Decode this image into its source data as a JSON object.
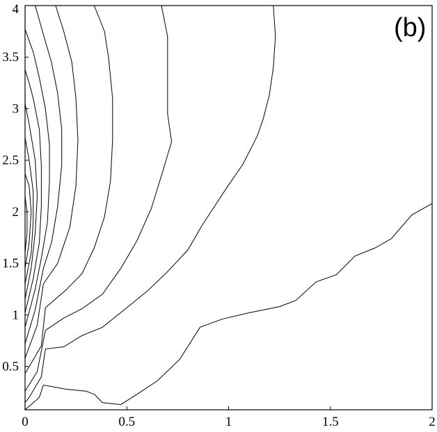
{
  "chart_data": {
    "type": "contour",
    "panel_label": "(b)",
    "xlim": [
      0,
      2
    ],
    "ylim": [
      0.08,
      4
    ],
    "x_ticks": [
      {
        "value": 0,
        "label": "0"
      },
      {
        "value": 0.5,
        "label": "0.5"
      },
      {
        "value": 1,
        "label": "1"
      },
      {
        "value": 1.5,
        "label": "1.5"
      },
      {
        "value": 2,
        "label": "2"
      }
    ],
    "y_ticks": [
      {
        "value": 0.5,
        "label": "0.5"
      },
      {
        "value": 1,
        "label": "1"
      },
      {
        "value": 1.5,
        "label": "1.5"
      },
      {
        "value": 2,
        "label": "2"
      },
      {
        "value": 2.5,
        "label": "2.5"
      },
      {
        "value": 3,
        "label": "3"
      },
      {
        "value": 3.5,
        "label": "3.5"
      },
      {
        "value": 4,
        "label": "4"
      }
    ],
    "contours": [
      {
        "points": [
          [
            0,
            0.08
          ],
          [
            0.07,
            0.2
          ],
          [
            0.09,
            0.32
          ],
          [
            0.2,
            0.28
          ],
          [
            0.3,
            0.26
          ],
          [
            0.34,
            0.23
          ],
          [
            0.38,
            0.15
          ],
          [
            0.47,
            0.13
          ],
          [
            0.55,
            0.23
          ],
          [
            0.65,
            0.36
          ],
          [
            0.76,
            0.57
          ],
          [
            0.86,
            0.88
          ],
          [
            0.97,
            0.96
          ],
          [
            1.1,
            1.02
          ],
          [
            1.25,
            1.08
          ],
          [
            1.33,
            1.14
          ],
          [
            1.43,
            1.32
          ],
          [
            1.53,
            1.39
          ],
          [
            1.62,
            1.57
          ],
          [
            1.72,
            1.65
          ],
          [
            1.8,
            1.74
          ],
          [
            1.9,
            1.97
          ],
          [
            2,
            2.08
          ]
        ]
      },
      {
        "points": [
          [
            0,
            0.15
          ],
          [
            0.02,
            0.2
          ],
          [
            0.08,
            0.4
          ],
          [
            0.1,
            0.67
          ],
          [
            0.19,
            0.69
          ],
          [
            0.28,
            0.8
          ],
          [
            0.38,
            0.88
          ],
          [
            0.5,
            1.07
          ],
          [
            0.6,
            1.23
          ],
          [
            0.7,
            1.42
          ],
          [
            0.8,
            1.63
          ],
          [
            0.87,
            1.87
          ],
          [
            0.93,
            2.05
          ],
          [
            1,
            2.26
          ],
          [
            1.07,
            2.46
          ],
          [
            1.14,
            2.73
          ],
          [
            1.17,
            2.9
          ],
          [
            1.2,
            3.13
          ],
          [
            1.22,
            3.4
          ],
          [
            1.23,
            3.7
          ],
          [
            1.22,
            4
          ]
        ]
      },
      {
        "points": [
          [
            0,
            0.26
          ],
          [
            0.06,
            0.45
          ],
          [
            0.1,
            0.85
          ],
          [
            0.19,
            0.97
          ],
          [
            0.28,
            1.06
          ],
          [
            0.38,
            1.2
          ],
          [
            0.47,
            1.45
          ],
          [
            0.55,
            1.72
          ],
          [
            0.62,
            2.03
          ],
          [
            0.67,
            2.35
          ],
          [
            0.72,
            2.68
          ],
          [
            0.7,
            2.95
          ],
          [
            0.7,
            3.35
          ],
          [
            0.7,
            3.7
          ],
          [
            0.67,
            4
          ]
        ]
      },
      {
        "points": [
          [
            0,
            0.43
          ],
          [
            0.08,
            0.7
          ],
          [
            0.1,
            1.07
          ],
          [
            0.2,
            1.24
          ],
          [
            0.28,
            1.4
          ],
          [
            0.34,
            1.65
          ],
          [
            0.39,
            1.95
          ],
          [
            0.42,
            2.3
          ],
          [
            0.43,
            2.7
          ],
          [
            0.43,
            3.1
          ],
          [
            0.41,
            3.5
          ],
          [
            0.39,
            3.75
          ],
          [
            0.34,
            4
          ]
        ]
      },
      {
        "points": [
          [
            0,
            0.58
          ],
          [
            0.06,
            0.9
          ],
          [
            0.09,
            1.3
          ],
          [
            0.16,
            1.5
          ],
          [
            0.22,
            1.85
          ],
          [
            0.25,
            2.25
          ],
          [
            0.26,
            2.7
          ],
          [
            0.25,
            3.1
          ],
          [
            0.23,
            3.45
          ],
          [
            0.19,
            3.75
          ],
          [
            0.15,
            4
          ]
        ]
      },
      {
        "points": [
          [
            0,
            0.72
          ],
          [
            0.05,
            1.05
          ],
          [
            0.09,
            1.45
          ],
          [
            0.13,
            1.7
          ],
          [
            0.16,
            2.05
          ],
          [
            0.18,
            2.45
          ],
          [
            0.18,
            2.8
          ],
          [
            0.16,
            3.15
          ],
          [
            0.13,
            3.45
          ],
          [
            0.09,
            3.72
          ],
          [
            0.05,
            4
          ]
        ]
      },
      {
        "points": [
          [
            0,
            0.88
          ],
          [
            0.05,
            1.25
          ],
          [
            0.08,
            1.55
          ],
          [
            0.11,
            1.9
          ],
          [
            0.12,
            2.3
          ],
          [
            0.12,
            2.65
          ],
          [
            0.1,
            3.0
          ],
          [
            0.07,
            3.3
          ],
          [
            0.04,
            3.55
          ],
          [
            0,
            3.77
          ]
        ]
      },
      {
        "points": [
          [
            0,
            1.02
          ],
          [
            0.04,
            1.35
          ],
          [
            0.07,
            1.7
          ],
          [
            0.08,
            2.05
          ],
          [
            0.08,
            2.45
          ],
          [
            0.07,
            2.8
          ],
          [
            0.04,
            3.1
          ],
          [
            0.02,
            3.25
          ],
          [
            0,
            3.38
          ]
        ]
      },
      {
        "points": [
          [
            0,
            1.15
          ],
          [
            0.03,
            1.45
          ],
          [
            0.05,
            1.8
          ],
          [
            0.06,
            2.15
          ],
          [
            0.05,
            2.5
          ],
          [
            0.02,
            2.85
          ],
          [
            0,
            3.05
          ]
        ]
      },
      {
        "points": [
          [
            0,
            1.3
          ],
          [
            0.03,
            1.6
          ],
          [
            0.04,
            1.9
          ],
          [
            0.04,
            2.2
          ],
          [
            0.02,
            2.5
          ],
          [
            0,
            2.72
          ]
        ]
      },
      {
        "points": [
          [
            0,
            1.45
          ],
          [
            0.02,
            1.7
          ],
          [
            0.03,
            2.0
          ],
          [
            0.02,
            2.25
          ],
          [
            0,
            2.37
          ]
        ]
      },
      {
        "points": [
          [
            0,
            1.6
          ],
          [
            0.01,
            1.8
          ],
          [
            0.01,
            2.0
          ],
          [
            0,
            2.15
          ]
        ]
      }
    ]
  }
}
